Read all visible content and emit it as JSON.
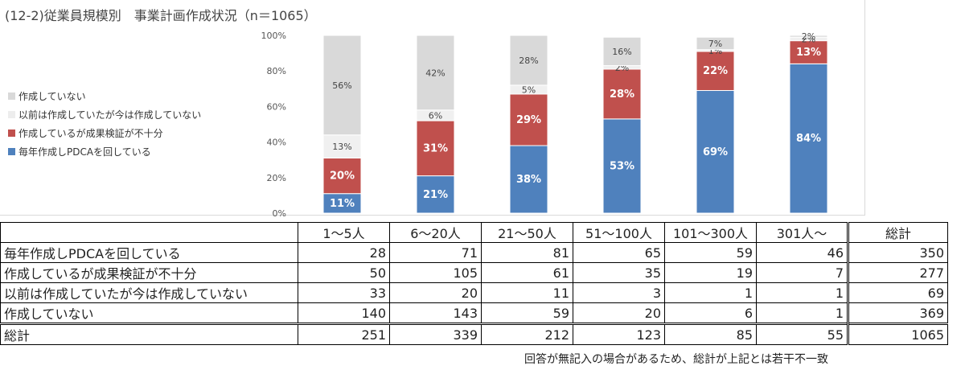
{
  "title": "(12-2)従業員規模別　事業計画作成状況（n＝1065）",
  "colors": {
    "blue": "#4f81bd",
    "red": "#c0504d",
    "light": "#f0f0f0",
    "gray": "#d9d9d9"
  },
  "chart_data": {
    "type": "bar",
    "stacked": true,
    "categories": [
      "1～5人",
      "6～20人",
      "21～50人",
      "51～100人",
      "101～300人",
      "301人～"
    ],
    "ylim": [
      0,
      100
    ],
    "yticks": [
      "0%",
      "20%",
      "40%",
      "60%",
      "80%",
      "100%"
    ],
    "series": [
      {
        "name": "毎年作成しPDCAを回している",
        "values": [
          11,
          21,
          38,
          53,
          69,
          84
        ],
        "labels": [
          "11%",
          "21%",
          "38%",
          "53%",
          "69%",
          "84%"
        ],
        "color": "#4f81bd"
      },
      {
        "name": "作成しているが成果検証が不十分",
        "values": [
          20,
          31,
          29,
          28,
          22,
          13
        ],
        "labels": [
          "20%",
          "31%",
          "29%",
          "28%",
          "22%",
          "13%"
        ],
        "color": "#c0504d"
      },
      {
        "name": "以前は作成していたが今は作成していない",
        "values": [
          13,
          6,
          5,
          2,
          1,
          2
        ],
        "labels": [
          "13%",
          "6%",
          "5%",
          "2%",
          "1%",
          "2%"
        ],
        "color": "#f0f0f0"
      },
      {
        "name": "作成していない",
        "values": [
          56,
          42,
          28,
          16,
          7,
          2
        ],
        "labels": [
          "56%",
          "42%",
          "28%",
          "16%",
          "7%",
          "2%"
        ],
        "color": "#d9d9d9"
      }
    ],
    "legend_order": [
      "作成していない",
      "以前は作成していたが今は作成していない",
      "作成しているが成果検証が不十分",
      "毎年作成しPDCAを回している"
    ],
    "legend_position": "left",
    "grid": false
  },
  "table": {
    "headers": [
      "",
      "1～5人",
      "6～20人",
      "21～50人",
      "51～100人",
      "101～300人",
      "301人～",
      "総計"
    ],
    "rows": [
      {
        "label": "毎年作成しPDCAを回している",
        "values": [
          "28",
          "71",
          "81",
          "65",
          "59",
          "46",
          "350"
        ]
      },
      {
        "label": "作成しているが成果検証が不十分",
        "values": [
          "50",
          "105",
          "61",
          "35",
          "19",
          "7",
          "277"
        ]
      },
      {
        "label": "以前は作成していたが今は作成していない",
        "values": [
          "33",
          "20",
          "11",
          "3",
          "1",
          "1",
          "69"
        ]
      },
      {
        "label": "作成していない",
        "values": [
          "140",
          "143",
          "59",
          "20",
          "6",
          "1",
          "369"
        ]
      },
      {
        "label": "総計",
        "values": [
          "251",
          "339",
          "212",
          "123",
          "85",
          "55",
          "1065"
        ]
      }
    ]
  },
  "footnote": "回答が無記入の場合があるため、総計が上記とは若干不一致"
}
